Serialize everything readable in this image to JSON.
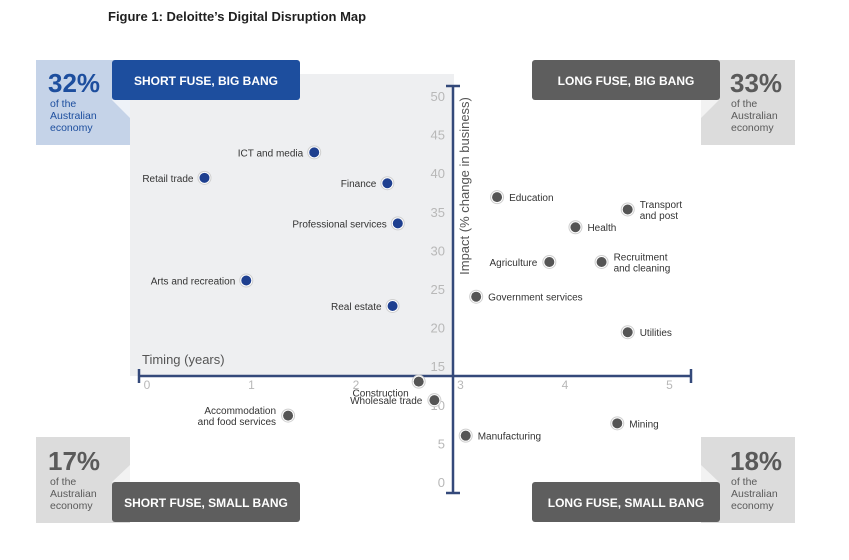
{
  "figure_title": "Figure 1: Deloitte’s Digital Disruption Map",
  "colors": {
    "blue_point": "#1e3f8f",
    "grey_point": "#555555",
    "blue_banner": "#1d4e9e",
    "grey_banner": "#5e5e5e",
    "blue_badge": "#c5d3e8",
    "grey_badge": "#dcdcdc",
    "panel_bg": "#eeeff1",
    "axis": "#34497a"
  },
  "quadrants": [
    {
      "id": "top-left",
      "label": "SHORT FUSE, BIG BANG",
      "percent": "32%",
      "desc": [
        "of the",
        "Australian",
        "economy"
      ]
    },
    {
      "id": "top-right",
      "label": "LONG FUSE, BIG BANG",
      "percent": "33%",
      "desc": [
        "of the",
        "Australian",
        "economy"
      ]
    },
    {
      "id": "bottom-left",
      "label": "SHORT FUSE, SMALL BANG",
      "percent": "17%",
      "desc": [
        "of the",
        "Australian",
        "economy"
      ]
    },
    {
      "id": "bottom-right",
      "label": "LONG FUSE, SMALL BANG",
      "percent": "18%",
      "desc": [
        "of the",
        "Australian",
        "economy"
      ]
    }
  ],
  "chart_data": {
    "type": "scatter",
    "title": "Figure 1: Deloitte’s Digital Disruption Map",
    "xlabel": "Timing (years)",
    "ylabel": "Impact (% change in business)",
    "xlim": [
      0,
      5
    ],
    "ylim": [
      0,
      50
    ],
    "x_ticks": [
      0,
      1,
      2,
      3,
      4,
      5
    ],
    "y_ticks": [
      0,
      5,
      10,
      15,
      20,
      25,
      30,
      35,
      40,
      45,
      50
    ],
    "x_crossing": 2.9,
    "y_crossing": 14,
    "grid": false,
    "legend": "none",
    "points": [
      {
        "label": [
          "ICT and media"
        ],
        "x": 1.6,
        "y": 42.7,
        "group": "blue"
      },
      {
        "label": [
          "Retail trade"
        ],
        "x": 0.55,
        "y": 39.4,
        "group": "blue"
      },
      {
        "label": [
          "Finance"
        ],
        "x": 2.3,
        "y": 38.7,
        "group": "blue"
      },
      {
        "label": [
          "Professional services"
        ],
        "x": 2.4,
        "y": 33.5,
        "group": "blue"
      },
      {
        "label": [
          "Arts and recreation"
        ],
        "x": 0.95,
        "y": 26.1,
        "group": "blue"
      },
      {
        "label": [
          "Real estate"
        ],
        "x": 2.35,
        "y": 22.8,
        "group": "blue"
      },
      {
        "label": [
          "Education"
        ],
        "x": 3.35,
        "y": 36.9,
        "group": "grey"
      },
      {
        "label": [
          "Transport",
          "and post"
        ],
        "x": 4.6,
        "y": 35.3,
        "group": "grey"
      },
      {
        "label": [
          "Health"
        ],
        "x": 4.1,
        "y": 33.0,
        "group": "grey"
      },
      {
        "label": [
          "Agriculture"
        ],
        "x": 3.85,
        "y": 28.5,
        "group": "grey"
      },
      {
        "label": [
          "Recruitment",
          "and cleaning"
        ],
        "x": 4.35,
        "y": 28.5,
        "group": "grey"
      },
      {
        "label": [
          "Government services"
        ],
        "x": 3.15,
        "y": 24.0,
        "group": "grey"
      },
      {
        "label": [
          "Utilities"
        ],
        "x": 4.6,
        "y": 19.4,
        "group": "grey"
      },
      {
        "label": [
          "Construction"
        ],
        "x": 2.6,
        "y": 13.0,
        "group": "grey"
      },
      {
        "label": [
          "Wholesale trade"
        ],
        "x": 2.75,
        "y": 10.6,
        "group": "grey"
      },
      {
        "label": [
          "Accommodation",
          "and food services"
        ],
        "x": 1.35,
        "y": 8.6,
        "group": "grey"
      },
      {
        "label": [
          "Mining"
        ],
        "x": 4.5,
        "y": 7.6,
        "group": "grey"
      },
      {
        "label": [
          "Manufacturing"
        ],
        "x": 3.05,
        "y": 6.0,
        "group": "grey"
      }
    ]
  }
}
